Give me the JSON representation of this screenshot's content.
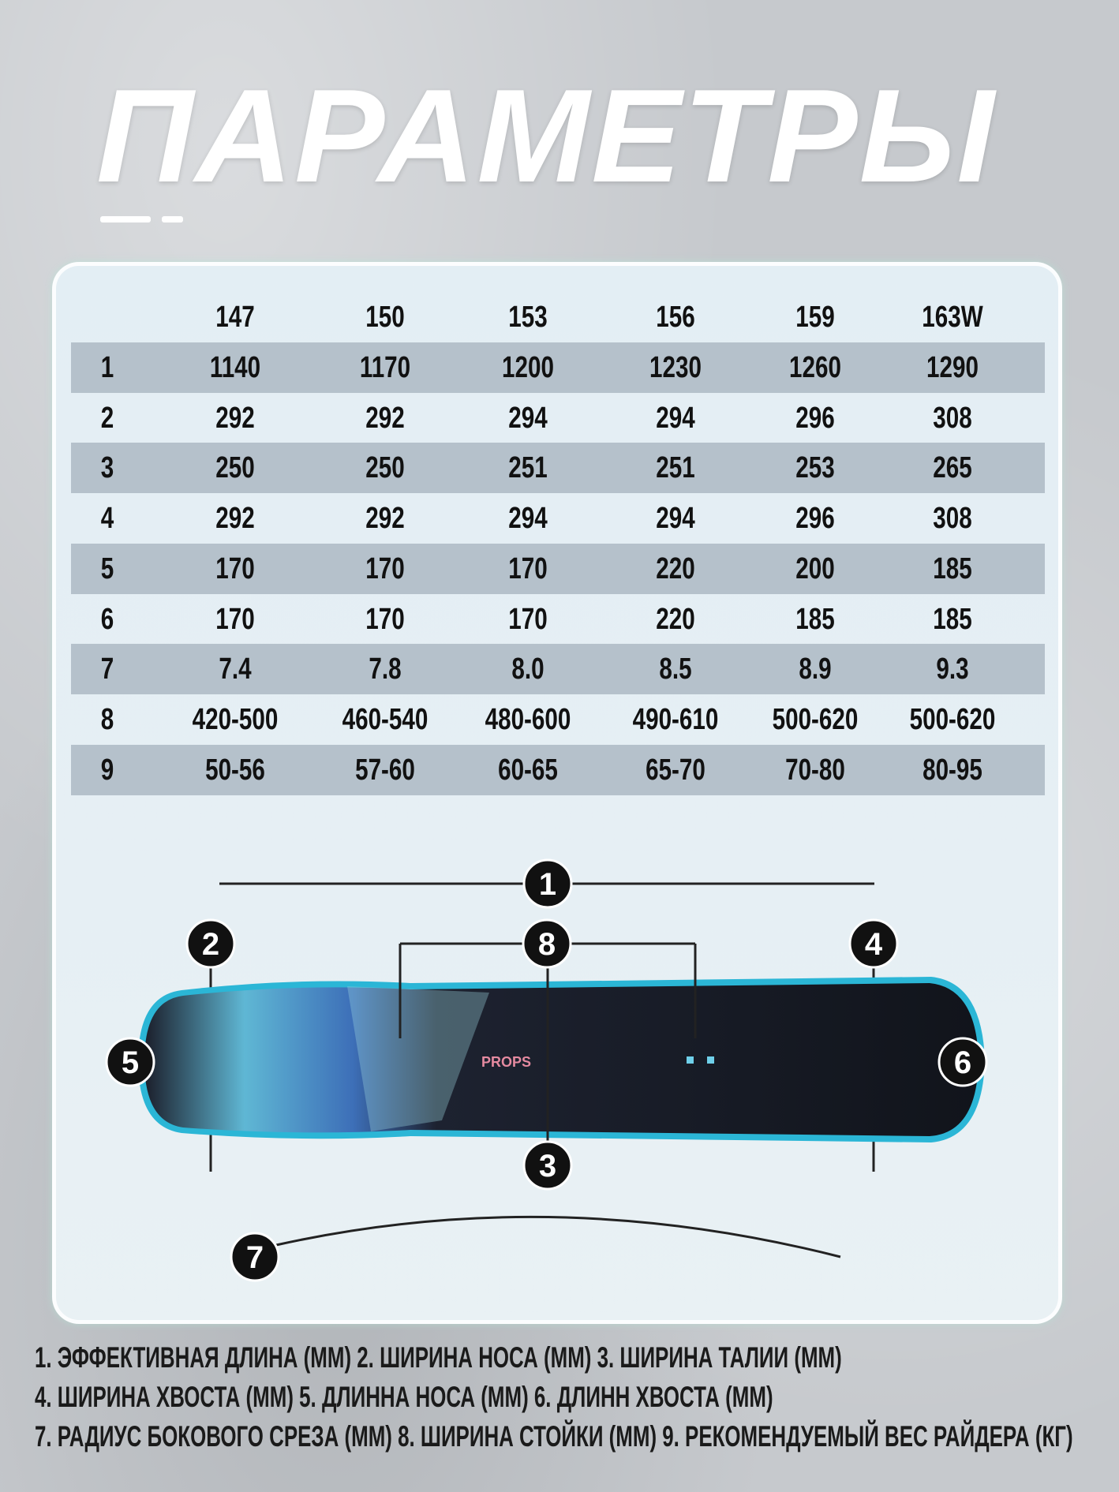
{
  "title": "ПАРАМЕТРЫ",
  "table": {
    "headers": [
      "",
      "147",
      "150",
      "153",
      "156",
      "159",
      "163W"
    ],
    "rows": [
      [
        "1",
        "1140",
        "1170",
        "1200",
        "1230",
        "1260",
        "1290"
      ],
      [
        "2",
        "292",
        "292",
        "294",
        "294",
        "296",
        "308"
      ],
      [
        "3",
        "250",
        "250",
        "251",
        "251",
        "253",
        "265"
      ],
      [
        "4",
        "292",
        "292",
        "294",
        "294",
        "296",
        "308"
      ],
      [
        "5",
        "170",
        "170",
        "170",
        "220",
        "200",
        "185"
      ],
      [
        "6",
        "170",
        "170",
        "170",
        "220",
        "185",
        "185"
      ],
      [
        "7",
        "7.4",
        "7.8",
        "8.0",
        "8.5",
        "8.9",
        "9.3"
      ],
      [
        "8",
        "420-500",
        "460-540",
        "480-600",
        "490-610",
        "500-620",
        "500-620"
      ],
      [
        "9",
        "50-56",
        "57-60",
        "60-65",
        "65-70",
        "70-80",
        "80-95"
      ]
    ]
  },
  "diagram": {
    "markers": [
      "1",
      "2",
      "3",
      "4",
      "5",
      "6",
      "7",
      "8"
    ],
    "board_logo": "PROPS"
  },
  "legend": [
    "1. ЭФФЕКТИВНАЯ ДЛИНА (ММ) 2. ШИРИНА НОСА (ММ) 3. ШИРИНА ТАЛИИ (ММ)",
    "4. ШИРИНА ХВОСТА (ММ) 5. ДЛИННА НОСА (ММ) 6. ДЛИНН ХВОСТА (ММ)",
    "7. РАДИУС БОКОВОГО СРЕЗА (ММ) 8. ШИРИНА СТОЙКИ (ММ) 9. РЕКОМЕНДУЕМЫЙ ВЕС РАЙДЕРА (КГ)"
  ],
  "colors": {
    "shade_row": "#b5c1cb",
    "board_edge": "#2bb6d6",
    "board_base": "#14171f",
    "marker": "#111111"
  }
}
